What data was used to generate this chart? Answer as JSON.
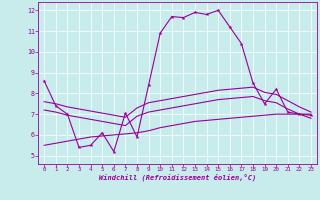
{
  "xlabel": "Windchill (Refroidissement éolien,°C)",
  "background_color": "#c8ecec",
  "line_color": "#990099",
  "grid_color": "#ffffff",
  "xlim": [
    -0.5,
    23.5
  ],
  "ylim": [
    4.6,
    12.4
  ],
  "yticks": [
    5,
    6,
    7,
    8,
    9,
    10,
    11,
    12
  ],
  "xticks": [
    0,
    1,
    2,
    3,
    4,
    5,
    6,
    7,
    8,
    9,
    10,
    11,
    12,
    13,
    14,
    15,
    16,
    17,
    18,
    19,
    20,
    21,
    22,
    23
  ],
  "main_x": [
    0,
    1,
    2,
    3,
    4,
    5,
    6,
    7,
    8,
    9,
    10,
    11,
    12,
    13,
    14,
    15,
    16,
    17,
    18,
    19,
    20,
    21,
    22,
    23
  ],
  "main_y": [
    8.6,
    7.4,
    7.0,
    5.4,
    5.5,
    6.1,
    5.2,
    7.05,
    5.9,
    8.4,
    10.9,
    11.7,
    11.65,
    11.9,
    11.8,
    12.0,
    11.2,
    10.4,
    8.5,
    7.5,
    8.2,
    7.1,
    7.0,
    6.95
  ],
  "upper_x": [
    0,
    1,
    2,
    3,
    4,
    5,
    6,
    7,
    8,
    9,
    10,
    11,
    12,
    13,
    14,
    15,
    16,
    17,
    18,
    19,
    20,
    21,
    22,
    23
  ],
  "upper_y": [
    7.6,
    7.5,
    7.35,
    7.25,
    7.15,
    7.05,
    6.95,
    6.85,
    7.3,
    7.55,
    7.65,
    7.75,
    7.85,
    7.95,
    8.05,
    8.15,
    8.2,
    8.25,
    8.3,
    8.05,
    7.95,
    7.65,
    7.35,
    7.1
  ],
  "mid_x": [
    0,
    1,
    2,
    3,
    4,
    5,
    6,
    7,
    8,
    9,
    10,
    11,
    12,
    13,
    14,
    15,
    16,
    17,
    18,
    19,
    20,
    21,
    22,
    23
  ],
  "mid_y": [
    7.2,
    7.1,
    6.95,
    6.85,
    6.75,
    6.65,
    6.55,
    6.45,
    6.9,
    7.1,
    7.2,
    7.3,
    7.4,
    7.5,
    7.6,
    7.7,
    7.75,
    7.8,
    7.85,
    7.65,
    7.55,
    7.25,
    7.0,
    6.8
  ],
  "lower_x": [
    0,
    1,
    2,
    3,
    4,
    5,
    6,
    7,
    8,
    9,
    10,
    11,
    12,
    13,
    14,
    15,
    16,
    17,
    18,
    19,
    20,
    21,
    22,
    23
  ],
  "lower_y": [
    5.5,
    5.6,
    5.7,
    5.8,
    5.9,
    5.95,
    6.0,
    6.05,
    6.1,
    6.2,
    6.35,
    6.45,
    6.55,
    6.65,
    6.7,
    6.75,
    6.8,
    6.85,
    6.9,
    6.95,
    7.0,
    7.0,
    7.0,
    7.0
  ]
}
